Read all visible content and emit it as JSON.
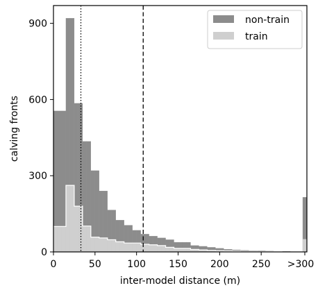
{
  "chart_data": {
    "type": "bar",
    "stacked": false,
    "xlabel": "inter-model distance (m)",
    "ylabel": "calving fronts",
    "xlim": [
      0,
      305
    ],
    "ylim": [
      0,
      970
    ],
    "xticks": [
      0,
      50,
      100,
      150,
      200,
      250
    ],
    "xtick_labels": [
      "0",
      "50",
      "100",
      "150",
      "200",
      "250"
    ],
    "overflow_tick_label": ">300",
    "yticks": [
      0,
      300,
      600,
      900
    ],
    "ytick_labels": [
      "0",
      "300",
      "600",
      "900"
    ],
    "bin_width": 5,
    "bin_starts": [
      0,
      5,
      10,
      15,
      20,
      25,
      30,
      35,
      40,
      45,
      50,
      55,
      60,
      65,
      70,
      75,
      80,
      85,
      90,
      95,
      100,
      105,
      110,
      115,
      120,
      125,
      130,
      135,
      140,
      145,
      150,
      155,
      160,
      165,
      170,
      175,
      180,
      185,
      190,
      195,
      200,
      205,
      210,
      215,
      220,
      225,
      230,
      235,
      240,
      245,
      250,
      255,
      260,
      265,
      270,
      275,
      280,
      285,
      290,
      295
    ],
    "overflow_bin": {
      "start": 300,
      "end": 305
    },
    "legend_position": "top-right",
    "grid": false,
    "series": [
      {
        "name": "non-train",
        "color": "#8c8c8c",
        "values": [
          555,
          555,
          555,
          920,
          920,
          585,
          585,
          435,
          435,
          320,
          320,
          240,
          240,
          165,
          165,
          125,
          125,
          105,
          105,
          85,
          85,
          70,
          70,
          62,
          62,
          55,
          55,
          48,
          48,
          38,
          38,
          38,
          38,
          25,
          25,
          22,
          22,
          18,
          18,
          14,
          14,
          10,
          10,
          8,
          8,
          6,
          6,
          5,
          5,
          4,
          4,
          3,
          3,
          2,
          2,
          2,
          2,
          1,
          1,
          1
        ],
        "overflow_value": 215
      },
      {
        "name": "train",
        "color": "#cfcfcf",
        "values": [
          100,
          100,
          100,
          262,
          262,
          180,
          180,
          102,
          102,
          58,
          58,
          55,
          55,
          48,
          48,
          40,
          40,
          35,
          35,
          35,
          35,
          30,
          30,
          28,
          28,
          25,
          25,
          18,
          18,
          14,
          14,
          14,
          14,
          10,
          10,
          8,
          8,
          6,
          6,
          5,
          5,
          4,
          4,
          3,
          3,
          2,
          2,
          2,
          2,
          1,
          1,
          1,
          1,
          1,
          1,
          0,
          0,
          0,
          0,
          0
        ],
        "overflow_value": 50
      }
    ],
    "reference_lines": [
      {
        "x": 33,
        "style": "dotted",
        "color": "#000000"
      },
      {
        "x": 108,
        "style": "dashed",
        "color": "#000000"
      }
    ]
  }
}
